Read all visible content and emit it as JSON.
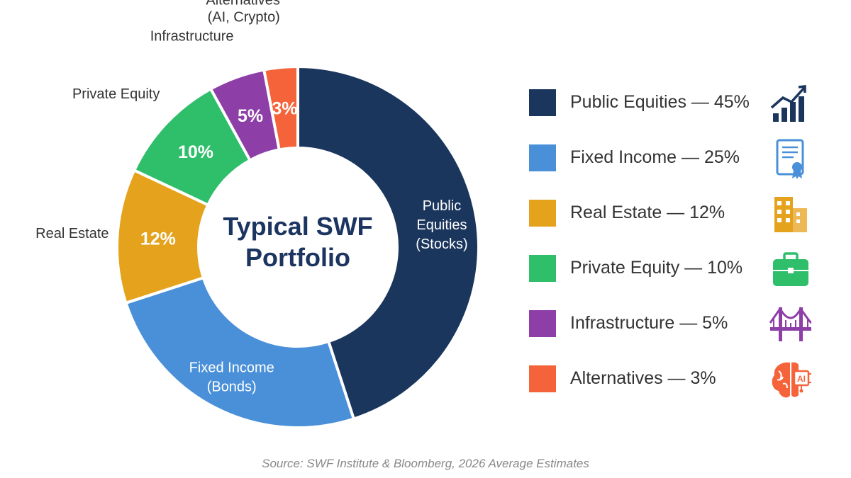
{
  "chart_data": {
    "type": "pie",
    "donut": true,
    "center_title_lines": [
      "Typical SWF",
      "Portfolio"
    ],
    "slices": [
      {
        "label": "Public Equities",
        "value": 45,
        "color": "#1b365d",
        "inner_label_lines": [
          "Public",
          "Equities",
          "(Stocks)"
        ],
        "outer_label_lines": []
      },
      {
        "label": "Fixed Income",
        "value": 25,
        "color": "#4a90d9",
        "inner_label_lines": [
          "Fixed Income",
          "(Bonds)"
        ],
        "outer_label_lines": []
      },
      {
        "label": "Real Estate",
        "value": 12,
        "color": "#e5a21d",
        "inner_label_lines": [
          "12%"
        ],
        "outer_label_lines": [
          "Real Estate"
        ]
      },
      {
        "label": "Private Equity",
        "value": 10,
        "color": "#2fbe6a",
        "inner_label_lines": [
          "10%"
        ],
        "outer_label_lines": [
          "Private Equity"
        ]
      },
      {
        "label": "Infrastructure",
        "value": 5,
        "color": "#8e3fa7",
        "inner_label_lines": [
          "5%"
        ],
        "outer_label_lines": [
          "Infrastructure"
        ]
      },
      {
        "label": "Alternatives",
        "value": 3,
        "color": "#f4633a",
        "inner_label_lines": [
          "3%"
        ],
        "outer_label_lines": [
          "Alternatives",
          "(AI, Crypto)"
        ]
      }
    ],
    "legend": {
      "placement": "right",
      "items": [
        {
          "text": "Public Equities — 45%",
          "color": "#1b365d",
          "icon": "chart-growth-icon",
          "icon_color": "#1b365d"
        },
        {
          "text": "Fixed Income — 25%",
          "color": "#4a90d9",
          "icon": "bond-certificate-icon",
          "icon_color": "#4a90d9"
        },
        {
          "text": "Real Estate — 12%",
          "color": "#e5a21d",
          "icon": "building-icon",
          "icon_color": "#e5a21d"
        },
        {
          "text": "Private Equity — 10%",
          "color": "#2fbe6a",
          "icon": "briefcase-icon",
          "icon_color": "#2fbe6a"
        },
        {
          "text": "Infrastructure — 5%",
          "color": "#8e3fa7",
          "icon": "bridge-icon",
          "icon_color": "#8e3fa7"
        },
        {
          "text": "Alternatives — 3%",
          "color": "#f4633a",
          "icon": "ai-brain-icon",
          "icon_color": "#f4633a",
          "icon_text": "AI"
        }
      ]
    },
    "source": "Source: SWF Institute & Bloomberg, 2026 Average Estimates"
  }
}
